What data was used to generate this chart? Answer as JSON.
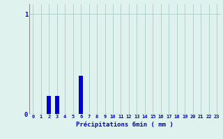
{
  "title": "",
  "xlabel": "Précipitations 6min ( mm )",
  "ylabel": "",
  "background_color": "#dff2ee",
  "bar_color": "#0000cc",
  "grid_color": "#aaccc8",
  "axis_color": "#888888",
  "text_color": "#0000cc",
  "xlim": [
    -0.5,
    23.5
  ],
  "ylim": [
    0,
    1.1
  ],
  "yticks": [
    0,
    1
  ],
  "hours": [
    0,
    1,
    2,
    3,
    4,
    5,
    6,
    7,
    8,
    9,
    10,
    11,
    12,
    13,
    14,
    15,
    16,
    17,
    18,
    19,
    20,
    21,
    22,
    23
  ],
  "values": [
    0,
    0,
    0.18,
    0.18,
    0,
    0,
    0.38,
    0,
    0,
    0,
    0,
    0,
    0,
    0,
    0,
    0,
    0,
    0,
    0,
    0,
    0,
    0,
    0,
    0
  ],
  "bar_width": 0.5
}
